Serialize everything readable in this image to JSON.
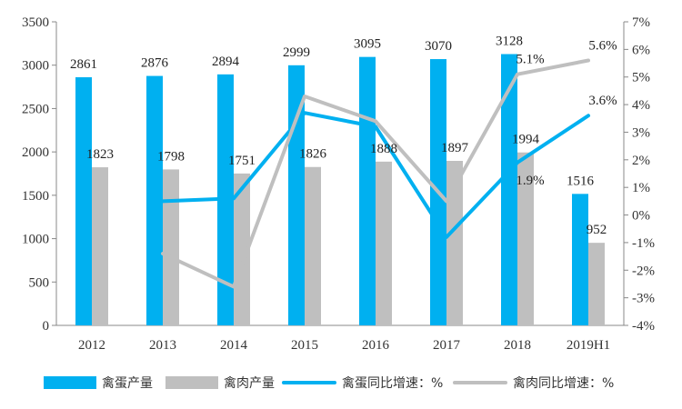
{
  "chart_data": {
    "type": "bar",
    "categories": [
      "2012",
      "2013",
      "2014",
      "2015",
      "2016",
      "2017",
      "2018",
      "2019H1"
    ],
    "series": [
      {
        "name": "禽蛋产量",
        "type": "bar",
        "axis": "left",
        "color": "#00B0F0",
        "values": [
          2861,
          2876,
          2894,
          2999,
          3095,
          3070,
          3128,
          1516
        ]
      },
      {
        "name": "禽肉产量",
        "type": "bar",
        "axis": "left",
        "color": "#BFBFBF",
        "values": [
          1823,
          1798,
          1751,
          1826,
          1888,
          1897,
          1994,
          952
        ]
      },
      {
        "name": "禽蛋同比增速：%",
        "type": "line",
        "axis": "right",
        "color": "#00B0F0",
        "values": [
          null,
          0.5,
          0.6,
          3.7,
          3.2,
          -0.8,
          1.9,
          3.6
        ]
      },
      {
        "name": "禽肉同比增速：%",
        "type": "line",
        "axis": "right",
        "color": "#BFBFBF",
        "values": [
          null,
          -1.4,
          -2.6,
          4.3,
          3.4,
          0.5,
          5.1,
          5.6
        ]
      }
    ],
    "point_labels": [
      {
        "series": 2,
        "index": 6,
        "text": "1.9%"
      },
      {
        "series": 2,
        "index": 7,
        "text": "3.6%"
      },
      {
        "series": 3,
        "index": 6,
        "text": "5.1%"
      },
      {
        "series": 3,
        "index": 7,
        "text": "5.6%"
      }
    ],
    "ylim_left": [
      0,
      3500
    ],
    "yticks_left": [
      "0",
      "500",
      "1000",
      "1500",
      "2000",
      "2500",
      "3000",
      "3500"
    ],
    "ylim_right": [
      -4,
      7
    ],
    "yticks_right": [
      "-4%",
      "-3%",
      "-2%",
      "-1%",
      "0%",
      "1%",
      "2%",
      "3%",
      "4%",
      "5%",
      "6%",
      "7%"
    ],
    "legend_position": "bottom",
    "grid": false
  }
}
